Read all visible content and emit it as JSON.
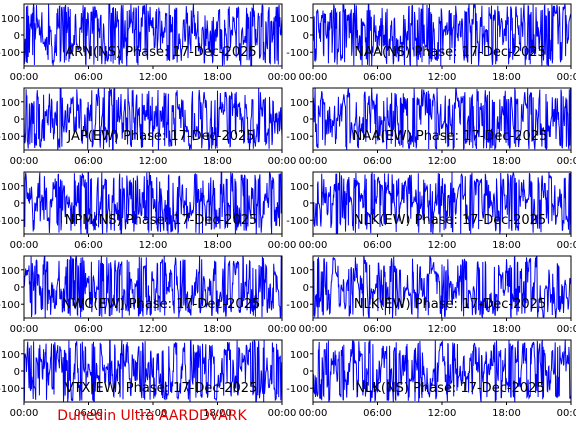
{
  "footer": {
    "text": "Dunedin Ultra AARDDVARK",
    "color": "#dd0000"
  },
  "colors": {
    "trace": "#0000ff",
    "axis": "#000000",
    "label": "#000000"
  },
  "chart_data": [
    {
      "type": "line",
      "title": "ARN(NS) Phase: 17-Dec-2025",
      "ylim": [
        -180,
        180
      ],
      "yticks": [
        100,
        0,
        -100
      ],
      "xticks": [
        "00:00",
        "06:00",
        "12:00",
        "18:00",
        "00:00"
      ],
      "grid": false,
      "seed": 11,
      "density": 0.85
    },
    {
      "type": "line",
      "title": "NAA(NS) Phase: 17-Dec-2025",
      "ylim": [
        -180,
        180
      ],
      "yticks": [
        100,
        0,
        -100
      ],
      "xticks": [
        "00:00",
        "06:00",
        "12:00",
        "18:00",
        "00:00"
      ],
      "grid": false,
      "seed": 23,
      "density": 0.8
    },
    {
      "type": "line",
      "title": "JAP(EW) Phase: 17-Dec-2025",
      "ylim": [
        -180,
        180
      ],
      "yticks": [
        100,
        0,
        -100
      ],
      "xticks": [
        "00:00",
        "06:00",
        "12:00",
        "18:00",
        "00:00"
      ],
      "grid": false,
      "seed": 37,
      "density": 0.8
    },
    {
      "type": "line",
      "title": "NAA(EW) Phase: 17-Dec-2025",
      "ylim": [
        -180,
        180
      ],
      "yticks": [
        100,
        0,
        -100
      ],
      "xticks": [
        "00:00",
        "06:00",
        "12:00",
        "18:00",
        "00:00"
      ],
      "grid": false,
      "seed": 41,
      "density": 0.75
    },
    {
      "type": "line",
      "title": "NPM(NS) Phase: 17-Dec-2025",
      "ylim": [
        -180,
        180
      ],
      "yticks": [
        100,
        0,
        -100
      ],
      "xticks": [
        "00:00",
        "06:00",
        "12:00",
        "18:00",
        "00:00"
      ],
      "grid": false,
      "seed": 53,
      "density": 0.8
    },
    {
      "type": "line",
      "title": "NLK(EW) Phase: 17-Dec-2025",
      "ylim": [
        -180,
        180
      ],
      "yticks": [
        100,
        0,
        -100
      ],
      "xticks": [
        "00:00",
        "06:00",
        "12:00",
        "18:00",
        "00:00"
      ],
      "grid": false,
      "seed": 67,
      "density": 0.65
    },
    {
      "type": "line",
      "title": "NWC(EW) Phase: 17-Dec-2025",
      "ylim": [
        -180,
        180
      ],
      "yticks": [
        100,
        0,
        -100
      ],
      "xticks": [
        "00:00",
        "06:00",
        "12:00",
        "18:00",
        "00:00"
      ],
      "grid": false,
      "seed": 71,
      "density": 0.75
    },
    {
      "type": "line",
      "title": "NLK(EW) Phase: 17-Dec-2025",
      "ylim": [
        -180,
        180
      ],
      "yticks": [
        100,
        0,
        -100
      ],
      "xticks": [
        "00:00",
        "06:00",
        "12:00",
        "18:00",
        "00:00"
      ],
      "grid": false,
      "seed": 83,
      "density": 0.7
    },
    {
      "type": "line",
      "title": "VTX(EW) Phase: 17-Dec-2025",
      "ylim": [
        -180,
        180
      ],
      "yticks": [
        100,
        0,
        -100
      ],
      "xticks": [
        "00:00",
        "06:00",
        "12:00",
        "18:00",
        "00:00"
      ],
      "grid": false,
      "seed": 97,
      "density": 0.75
    },
    {
      "type": "line",
      "title": "NLK(NS) Phase: 17-Dec-2025",
      "ylim": [
        -180,
        180
      ],
      "yticks": [
        100,
        0,
        -100
      ],
      "xticks": [
        "00:00",
        "06:00",
        "12:00",
        "18:00",
        "00:00"
      ],
      "grid": false,
      "seed": 101,
      "density": 0.7
    }
  ]
}
